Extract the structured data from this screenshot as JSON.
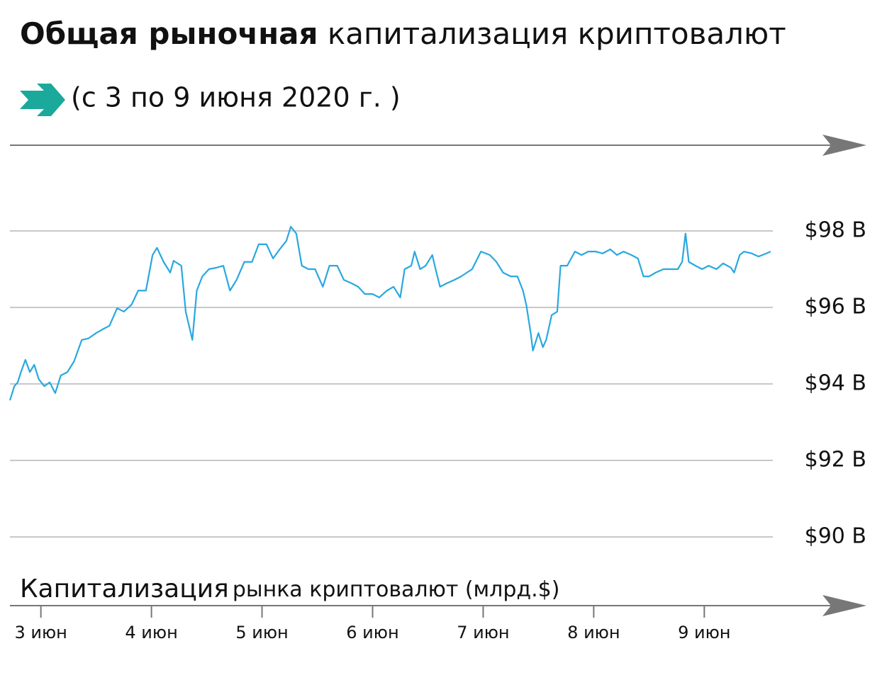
{
  "chart_data": {
    "type": "line",
    "title": [
      "Общая рыночная",
      "капитализация криптовалют"
    ],
    "subtitle": "(с 3 по 9 июня 2020 г. )",
    "axis_label": [
      "Капитализация",
      "рынка криптовалют (млрд.$)"
    ],
    "x": [
      2.72,
      2.76,
      2.79,
      2.82,
      2.86,
      2.9,
      2.94,
      2.98,
      3.03,
      3.08,
      3.13,
      3.18,
      3.24,
      3.3,
      3.37,
      3.43,
      3.5,
      3.56,
      3.62,
      3.69,
      3.75,
      3.82,
      3.88,
      3.95,
      4.01,
      4.05,
      4.11,
      4.17,
      4.2,
      4.27,
      4.31,
      4.34,
      4.37,
      4.41,
      4.46,
      4.52,
      4.59,
      4.65,
      4.71,
      4.77,
      4.84,
      4.91,
      4.97,
      5.04,
      5.1,
      5.16,
      5.22,
      5.26,
      5.31,
      5.36,
      5.42,
      5.48,
      5.55,
      5.61,
      5.68,
      5.74,
      5.81,
      5.87,
      5.93,
      6.0,
      6.06,
      6.13,
      6.19,
      6.25,
      6.29,
      6.35,
      6.38,
      6.43,
      6.48,
      6.54,
      6.57,
      6.61,
      6.67,
      6.74,
      6.8,
      6.9,
      6.98,
      7.06,
      7.12,
      7.18,
      7.25,
      7.31,
      7.36,
      7.39,
      7.43,
      7.45,
      7.5,
      7.54,
      7.57,
      7.62,
      7.67,
      7.7,
      7.76,
      7.83,
      7.89,
      7.95,
      8.02,
      8.08,
      8.15,
      8.21,
      8.27,
      8.34,
      8.4,
      8.45,
      8.5,
      8.56,
      8.63,
      8.69,
      8.76,
      8.8,
      8.83,
      8.86,
      8.92,
      8.98,
      9.04,
      9.11,
      9.17,
      9.24,
      9.27,
      9.32,
      9.36,
      9.43,
      9.49,
      9.56,
      9.6
    ],
    "series": [
      {
        "color": "#29a8e0",
        "values": [
          93.57,
          93.94,
          94.04,
          94.31,
          94.63,
          94.31,
          94.5,
          94.13,
          93.94,
          94.04,
          93.76,
          94.22,
          94.31,
          94.59,
          95.15,
          95.19,
          95.33,
          95.43,
          95.52,
          95.98,
          95.89,
          96.07,
          96.44,
          96.44,
          97.37,
          97.56,
          97.19,
          96.91,
          97.22,
          97.09,
          95.89,
          95.52,
          95.15,
          96.44,
          96.81,
          97.0,
          97.04,
          97.09,
          96.44,
          96.72,
          97.19,
          97.19,
          97.65,
          97.65,
          97.28,
          97.52,
          97.74,
          98.11,
          97.93,
          97.09,
          97.0,
          97.0,
          96.54,
          97.09,
          97.09,
          96.72,
          96.63,
          96.54,
          96.35,
          96.35,
          96.26,
          96.44,
          96.54,
          96.26,
          97.0,
          97.09,
          97.46,
          97.0,
          97.09,
          97.37,
          97.0,
          96.54,
          96.63,
          96.72,
          96.81,
          97.0,
          97.46,
          97.37,
          97.19,
          96.91,
          96.81,
          96.81,
          96.44,
          96.07,
          95.33,
          94.87,
          95.33,
          94.96,
          95.15,
          95.8,
          95.89,
          97.09,
          97.09,
          97.46,
          97.37,
          97.46,
          97.46,
          97.41,
          97.52,
          97.37,
          97.46,
          97.37,
          97.28,
          96.81,
          96.81,
          96.91,
          97.0,
          97.0,
          97.0,
          97.19,
          97.93,
          97.19,
          97.09,
          97.0,
          97.09,
          97.0,
          97.15,
          97.04,
          96.91,
          97.37,
          97.46,
          97.41,
          97.33,
          97.41,
          97.46
        ]
      }
    ],
    "xlim": [
      2.72,
      9.62
    ],
    "xticks": [
      {
        "value": 3,
        "label": "3 июн"
      },
      {
        "value": 4,
        "label": "4 июн"
      },
      {
        "value": 5,
        "label": "5 июн"
      },
      {
        "value": 6,
        "label": "6 июн"
      },
      {
        "value": 7,
        "label": "7 июн"
      },
      {
        "value": 8,
        "label": "8 июн"
      },
      {
        "value": 9,
        "label": "9 июн"
      }
    ],
    "ylim": [
      90,
      98.5
    ],
    "yticks": [
      {
        "value": 90,
        "label": "$90 B"
      },
      {
        "value": 92,
        "label": "$92 B"
      },
      {
        "value": 94,
        "label": "$94 B"
      },
      {
        "value": 96,
        "label": "$96 B"
      },
      {
        "value": 98,
        "label": "$98 B"
      }
    ],
    "grid": true
  }
}
